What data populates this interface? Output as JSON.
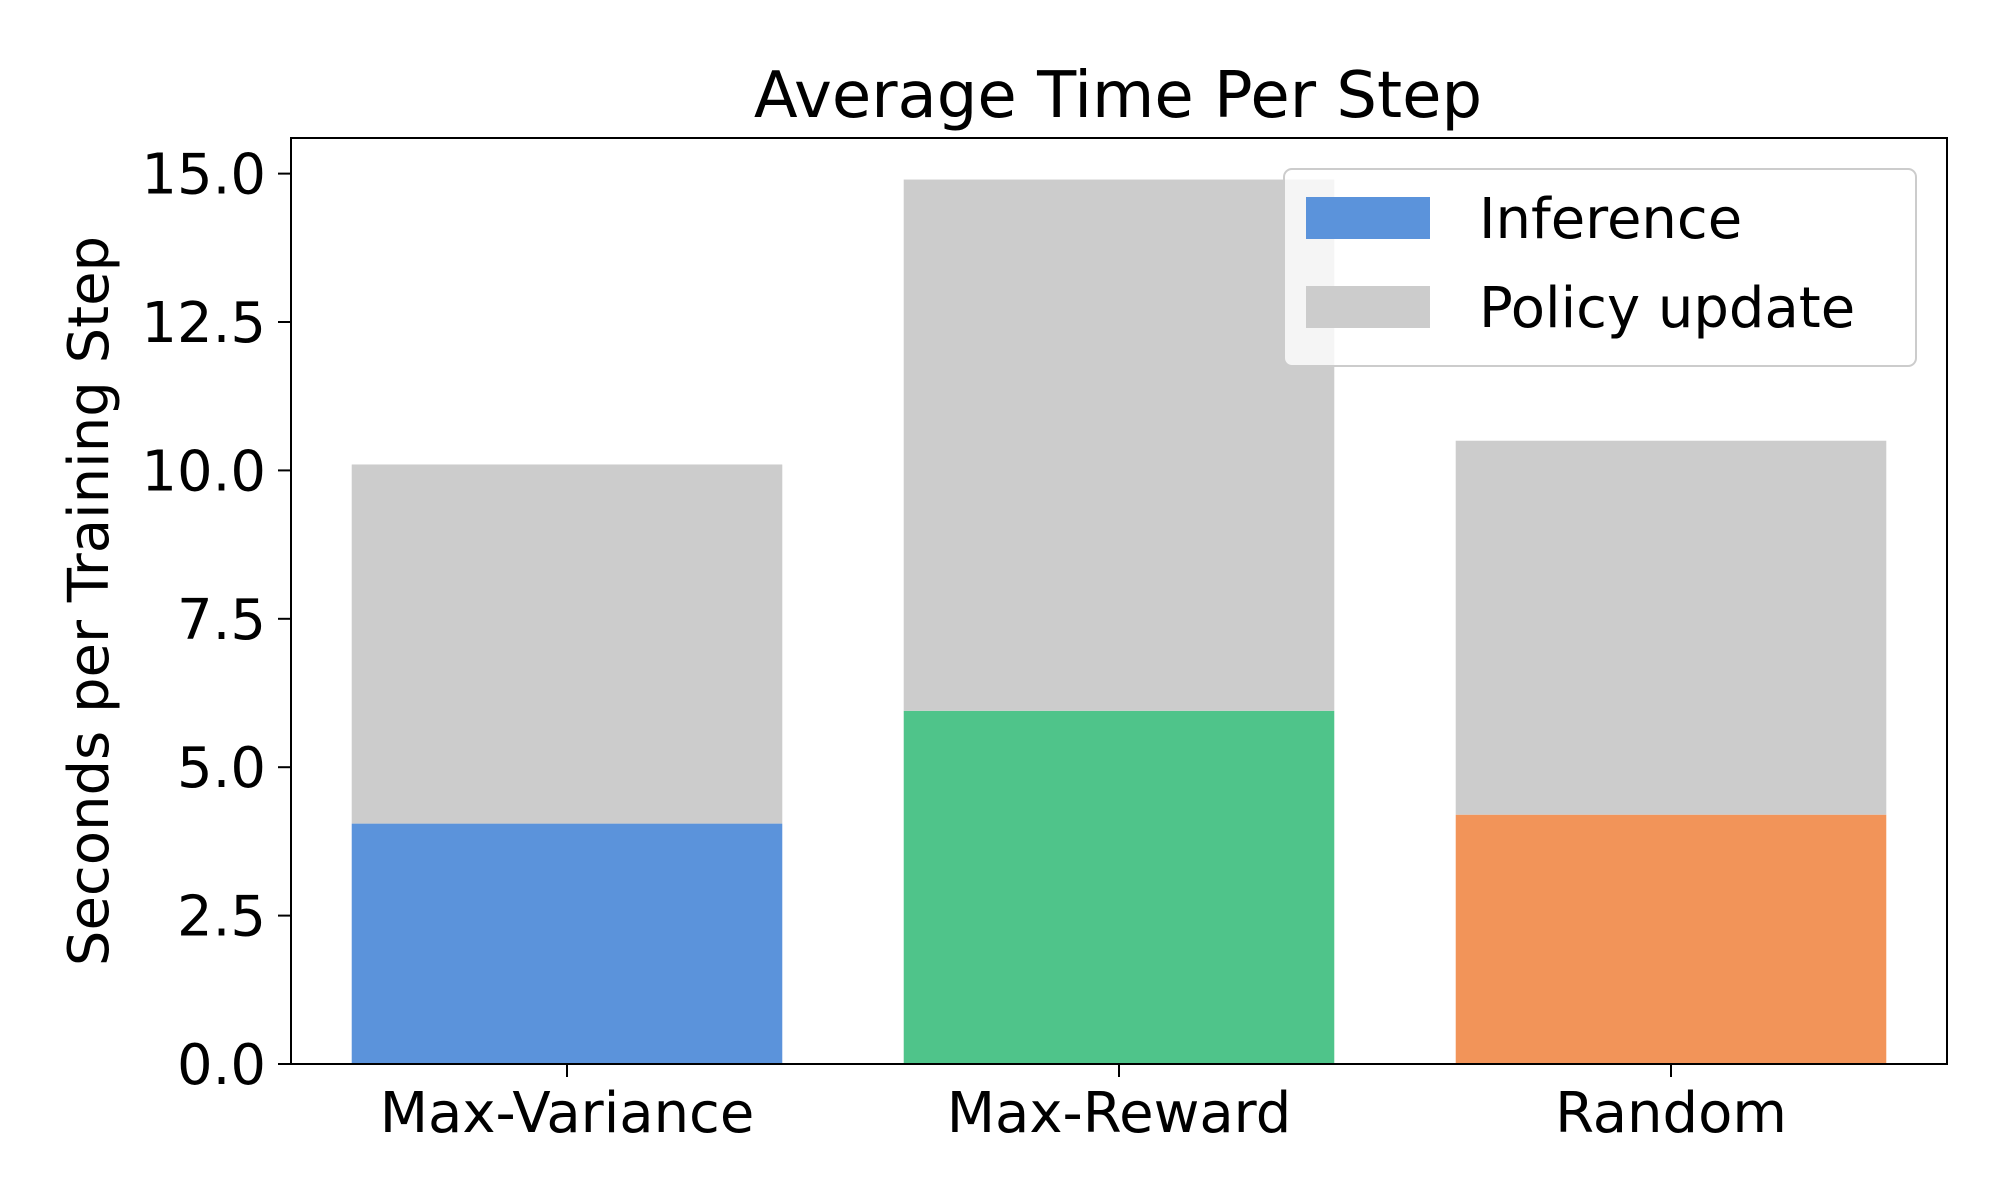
{
  "chart_data": {
    "type": "bar",
    "stacked": true,
    "title": "Average Time Per Step",
    "xlabel": "",
    "ylabel": "Seconds per Training Step",
    "categories": [
      "Max-Variance",
      "Max-Reward",
      "Random"
    ],
    "ylim": [
      0,
      15.6
    ],
    "yticks": [
      "0.0",
      "2.5",
      "5.0",
      "7.5",
      "10.0",
      "12.5",
      "15.0"
    ],
    "series": [
      {
        "name": "Inference",
        "values": [
          4.05,
          5.95,
          4.2
        ],
        "colors": [
          "#5b93db",
          "#4fc48a",
          "#f29459"
        ]
      },
      {
        "name": "Policy update",
        "values": [
          6.05,
          8.95,
          6.3
        ],
        "colors": [
          "#cccccc",
          "#cccccc",
          "#cccccc"
        ]
      }
    ],
    "legend": {
      "position": "top-right",
      "entries": [
        {
          "label": "Inference",
          "color": "#5b93db"
        },
        {
          "label": "Policy update",
          "color": "#cccccc"
        }
      ]
    },
    "grid": false
  }
}
